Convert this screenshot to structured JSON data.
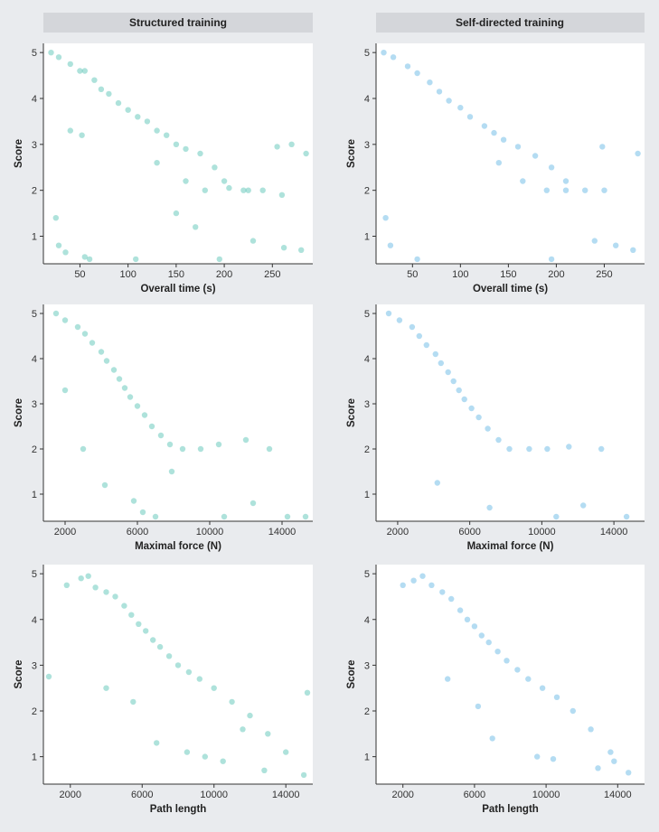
{
  "columns": [
    "Structured training",
    "Self-directed training"
  ],
  "colors": {
    "structured": "#2bb3a0",
    "self_directed": "#3aa3de",
    "header_bg": "#d4d6da",
    "page_bg": "#e9ebee",
    "plot_bg": "#ffffff",
    "axis": "#333333"
  },
  "chart_data": [
    {
      "type": "scatter",
      "title": "Structured training",
      "group": "structured",
      "xlabel": "Overall time (s)",
      "ylabel": "Score",
      "xlim": [
        12,
        292
      ],
      "ylim": [
        0.4,
        5.2
      ],
      "xticks": [
        50,
        100,
        150,
        200,
        250
      ],
      "yticks": [
        1,
        2,
        3,
        4,
        5
      ],
      "points": [
        [
          20,
          5
        ],
        [
          28,
          4.9
        ],
        [
          40,
          4.75
        ],
        [
          50,
          4.6
        ],
        [
          55,
          4.6
        ],
        [
          65,
          4.4
        ],
        [
          72,
          4.2
        ],
        [
          80,
          4.1
        ],
        [
          90,
          3.9
        ],
        [
          100,
          3.75
        ],
        [
          110,
          3.6
        ],
        [
          120,
          3.5
        ],
        [
          130,
          3.3
        ],
        [
          140,
          3.2
        ],
        [
          150,
          3.0
        ],
        [
          160,
          2.9
        ],
        [
          175,
          2.8
        ],
        [
          190,
          2.5
        ],
        [
          200,
          2.2
        ],
        [
          220,
          2.0
        ],
        [
          240,
          2.0
        ],
        [
          260,
          1.9
        ],
        [
          130,
          2.6
        ],
        [
          160,
          2.2
        ],
        [
          180,
          2.0
        ],
        [
          205,
          2.05
        ],
        [
          225,
          2.0
        ],
        [
          25,
          1.4
        ],
        [
          28,
          0.8
        ],
        [
          35,
          0.65
        ],
        [
          55,
          0.55
        ],
        [
          60,
          0.5
        ],
        [
          108,
          0.5
        ],
        [
          150,
          1.5
        ],
        [
          170,
          1.2
        ],
        [
          195,
          0.5
        ],
        [
          230,
          0.9
        ],
        [
          262,
          0.75
        ],
        [
          280,
          0.7
        ],
        [
          285,
          2.8
        ],
        [
          255,
          2.95
        ],
        [
          270,
          3.0
        ],
        [
          40,
          3.3
        ],
        [
          52,
          3.2
        ]
      ]
    },
    {
      "type": "scatter",
      "title": "Self-directed training",
      "group": "self_directed",
      "xlabel": "Overall time (s)",
      "ylabel": "Score",
      "xlim": [
        12,
        292
      ],
      "ylim": [
        0.4,
        5.2
      ],
      "xticks": [
        50,
        100,
        150,
        200,
        250
      ],
      "yticks": [
        1,
        2,
        3,
        4,
        5
      ],
      "points": [
        [
          20,
          5
        ],
        [
          30,
          4.9
        ],
        [
          45,
          4.7
        ],
        [
          55,
          4.55
        ],
        [
          68,
          4.35
        ],
        [
          78,
          4.15
        ],
        [
          88,
          3.95
        ],
        [
          100,
          3.8
        ],
        [
          110,
          3.6
        ],
        [
          125,
          3.4
        ],
        [
          135,
          3.25
        ],
        [
          145,
          3.1
        ],
        [
          160,
          2.95
        ],
        [
          178,
          2.75
        ],
        [
          195,
          2.5
        ],
        [
          210,
          2.2
        ],
        [
          230,
          2.0
        ],
        [
          250,
          2.0
        ],
        [
          140,
          2.6
        ],
        [
          165,
          2.2
        ],
        [
          190,
          2.0
        ],
        [
          210,
          2.0
        ],
        [
          22,
          1.4
        ],
        [
          27,
          0.8
        ],
        [
          55,
          0.5
        ],
        [
          195,
          0.5
        ],
        [
          240,
          0.9
        ],
        [
          262,
          0.8
        ],
        [
          280,
          0.7
        ],
        [
          285,
          2.8
        ],
        [
          248,
          2.95
        ]
      ]
    },
    {
      "type": "scatter",
      "title": "Structured training",
      "group": "structured",
      "xlabel": "Maximal force (N)",
      "ylabel": "Score",
      "xlim": [
        800,
        15700
      ],
      "ylim": [
        0.4,
        5.2
      ],
      "xticks": [
        2000,
        6000,
        10000,
        14000
      ],
      "yticks": [
        1,
        2,
        3,
        4,
        5
      ],
      "points": [
        [
          1500,
          5
        ],
        [
          2000,
          4.85
        ],
        [
          2700,
          4.7
        ],
        [
          3100,
          4.55
        ],
        [
          3500,
          4.35
        ],
        [
          4000,
          4.15
        ],
        [
          4300,
          3.95
        ],
        [
          4700,
          3.75
        ],
        [
          5000,
          3.55
        ],
        [
          5300,
          3.35
        ],
        [
          5600,
          3.15
        ],
        [
          6000,
          2.95
        ],
        [
          6400,
          2.75
        ],
        [
          6800,
          2.5
        ],
        [
          7300,
          2.3
        ],
        [
          7800,
          2.1
        ],
        [
          8500,
          2.0
        ],
        [
          9500,
          2.0
        ],
        [
          10500,
          2.1
        ],
        [
          12000,
          2.2
        ],
        [
          13300,
          2.0
        ],
        [
          2000,
          3.3
        ],
        [
          3000,
          2.0
        ],
        [
          4200,
          1.2
        ],
        [
          5800,
          0.85
        ],
        [
          6300,
          0.6
        ],
        [
          7000,
          0.5
        ],
        [
          10800,
          0.5
        ],
        [
          12400,
          0.8
        ],
        [
          14300,
          0.5
        ],
        [
          15300,
          0.5
        ],
        [
          7900,
          1.5
        ]
      ]
    },
    {
      "type": "scatter",
      "title": "Self-directed training",
      "group": "self_directed",
      "xlabel": "Maximal force (N)",
      "ylabel": "Score",
      "xlim": [
        800,
        15700
      ],
      "ylim": [
        0.4,
        5.2
      ],
      "xticks": [
        2000,
        6000,
        10000,
        14000
      ],
      "yticks": [
        1,
        2,
        3,
        4,
        5
      ],
      "points": [
        [
          1500,
          5
        ],
        [
          2100,
          4.85
        ],
        [
          2800,
          4.7
        ],
        [
          3200,
          4.5
        ],
        [
          3600,
          4.3
        ],
        [
          4100,
          4.1
        ],
        [
          4400,
          3.9
        ],
        [
          4800,
          3.7
        ],
        [
          5100,
          3.5
        ],
        [
          5400,
          3.3
        ],
        [
          5700,
          3.1
        ],
        [
          6100,
          2.9
        ],
        [
          6500,
          2.7
        ],
        [
          7000,
          2.45
        ],
        [
          7600,
          2.2
        ],
        [
          8200,
          2.0
        ],
        [
          9300,
          2.0
        ],
        [
          10300,
          2.0
        ],
        [
          11500,
          2.05
        ],
        [
          13300,
          2.0
        ],
        [
          4200,
          1.25
        ],
        [
          7100,
          0.7
        ],
        [
          10800,
          0.5
        ],
        [
          12300,
          0.75
        ],
        [
          14700,
          0.5
        ]
      ]
    },
    {
      "type": "scatter",
      "title": "Structured training",
      "group": "structured",
      "xlabel": "Path length",
      "ylabel": "Score",
      "xlim": [
        500,
        15500
      ],
      "ylim": [
        0.4,
        5.2
      ],
      "xticks": [
        2000,
        6000,
        10000,
        14000
      ],
      "yticks": [
        1,
        2,
        3,
        4,
        5
      ],
      "points": [
        [
          1800,
          4.75
        ],
        [
          2600,
          4.9
        ],
        [
          3000,
          4.95
        ],
        [
          3400,
          4.7
        ],
        [
          4000,
          4.6
        ],
        [
          4500,
          4.5
        ],
        [
          5000,
          4.3
        ],
        [
          5400,
          4.1
        ],
        [
          5800,
          3.9
        ],
        [
          6200,
          3.75
        ],
        [
          6600,
          3.55
        ],
        [
          7000,
          3.4
        ],
        [
          7500,
          3.2
        ],
        [
          8000,
          3.0
        ],
        [
          8600,
          2.85
        ],
        [
          9200,
          2.7
        ],
        [
          10000,
          2.5
        ],
        [
          11000,
          2.2
        ],
        [
          12000,
          1.9
        ],
        [
          13000,
          1.5
        ],
        [
          14000,
          1.1
        ],
        [
          15000,
          0.6
        ],
        [
          800,
          2.75
        ],
        [
          4000,
          2.5
        ],
        [
          5500,
          2.2
        ],
        [
          6800,
          1.3
        ],
        [
          8500,
          1.1
        ],
        [
          9500,
          1.0
        ],
        [
          10500,
          0.9
        ],
        [
          12800,
          0.7
        ],
        [
          15200,
          2.4
        ],
        [
          11600,
          1.6
        ]
      ]
    },
    {
      "type": "scatter",
      "title": "Self-directed training",
      "group": "self_directed",
      "xlabel": "Path length",
      "ylabel": "Score",
      "xlim": [
        500,
        15500
      ],
      "ylim": [
        0.4,
        5.2
      ],
      "xticks": [
        2000,
        6000,
        10000,
        14000
      ],
      "yticks": [
        1,
        2,
        3,
        4,
        5
      ],
      "points": [
        [
          2000,
          4.75
        ],
        [
          2600,
          4.85
        ],
        [
          3100,
          4.95
        ],
        [
          3600,
          4.75
        ],
        [
          4200,
          4.6
        ],
        [
          4700,
          4.45
        ],
        [
          5200,
          4.2
        ],
        [
          5600,
          4.0
        ],
        [
          6000,
          3.85
        ],
        [
          6400,
          3.65
        ],
        [
          6800,
          3.5
        ],
        [
          7300,
          3.3
        ],
        [
          7800,
          3.1
        ],
        [
          8400,
          2.9
        ],
        [
          9000,
          2.7
        ],
        [
          9800,
          2.5
        ],
        [
          10600,
          2.3
        ],
        [
          11500,
          2.0
        ],
        [
          12500,
          1.6
        ],
        [
          13600,
          1.1
        ],
        [
          14600,
          0.65
        ],
        [
          4500,
          2.7
        ],
        [
          6200,
          2.1
        ],
        [
          7000,
          1.4
        ],
        [
          9500,
          1.0
        ],
        [
          10400,
          0.95
        ],
        [
          12900,
          0.75
        ],
        [
          13800,
          0.9
        ]
      ]
    }
  ]
}
